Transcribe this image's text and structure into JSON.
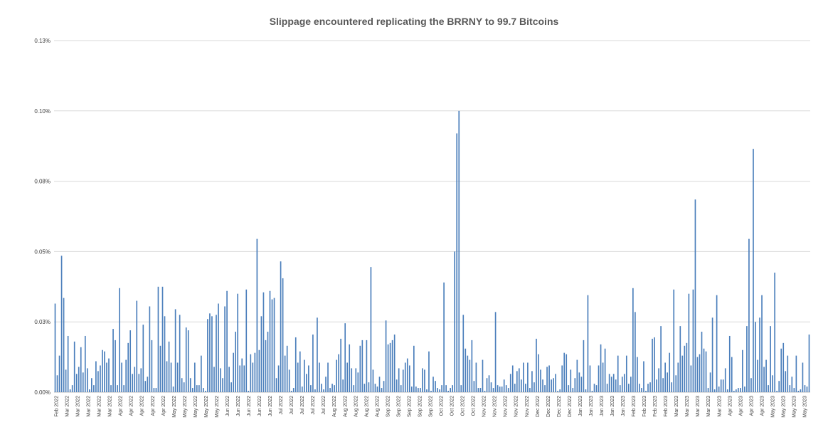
{
  "chart_data": {
    "type": "bar",
    "title": "Slippage encountered replicating the BRRNY to 99.7 Bitcoins",
    "xlabel": "",
    "ylabel": "",
    "ylim": [
      0,
      0.125
    ],
    "yticks": [
      "0.13%",
      "0.10%",
      "0.08%",
      "0.05%",
      "0.03%",
      "0.00%"
    ],
    "grid": true,
    "legend": "none",
    "bar_color": "#4a7ebb",
    "x_tick_labels": [
      "Feb 2022",
      "Mar 2022",
      "Mar 2022",
      "Mar 2022",
      "Mar 2022",
      "Mar 2022",
      "Apr 2022",
      "Apr 2022",
      "Apr 2022",
      "Apr 2022",
      "Apr 2022",
      "May 2022",
      "May 2022",
      "May 2022",
      "May 2022",
      "May 2022",
      "Jun 2022",
      "Jun 2022",
      "Jun 2022",
      "Jun 2022",
      "Jun 2022",
      "Jul 2022",
      "Jul 2022",
      "Jul 2022",
      "Jul 2022",
      "Jul 2022",
      "Aug 2022",
      "Aug 2022",
      "Aug 2022",
      "Aug 2022",
      "Aug 2022",
      "Sep 2022",
      "Sep 2022",
      "Sep 2022",
      "Sep 2022",
      "Sep 2022",
      "Oct 2022",
      "Oct 2022",
      "Oct 2022",
      "Oct 2022",
      "Nov 2022",
      "Nov 2022",
      "Nov 2022",
      "Nov 2022",
      "Nov 2022",
      "Dec 2022",
      "Dec 2022",
      "Dec 2022",
      "Dec 2022",
      "Jan 2023",
      "Jan 2023",
      "Jan 2023",
      "Jan 2023",
      "Jan 2023",
      "Feb 2023",
      "Feb 2023",
      "Feb 2023",
      "Feb 2023",
      "Mar 2023",
      "Mar 2023",
      "Mar 2023",
      "Mar 2023",
      "Mar 2023",
      "Apr 2023",
      "Apr 2023",
      "Apr 2023",
      "Apr 2023",
      "May 2023",
      "May 2023",
      "May 2023",
      "May 2023"
    ],
    "values": [
      0.0315,
      0.006,
      0.013,
      0.0485,
      0.0335,
      0.008,
      0.02,
      0.001,
      0.0025,
      0.018,
      0.0065,
      0.009,
      0.016,
      0.007,
      0.02,
      0.0085,
      0.001,
      0.005,
      0.0025,
      0.011,
      0.0075,
      0.0095,
      0.015,
      0.0145,
      0.0105,
      0.012,
      0.0025,
      0.0225,
      0.0185,
      0.0025,
      0.037,
      0.0105,
      0.0025,
      0.0115,
      0.0175,
      0.022,
      0.0065,
      0.009,
      0.0325,
      0.0065,
      0.0085,
      0.024,
      0.004,
      0.0055,
      0.0305,
      0.0185,
      0.0015,
      0.0015,
      0.0375,
      0.0165,
      0.0375,
      0.027,
      0.011,
      0.018,
      0.0105,
      0.002,
      0.0295,
      0.0105,
      0.0275,
      0.005,
      0.0035,
      0.023,
      0.022,
      0.005,
      0.0015,
      0.0105,
      0.0025,
      0.0025,
      0.013,
      0.0015,
      0.0005,
      0.026,
      0.028,
      0.027,
      0.009,
      0.0275,
      0.0315,
      0.0085,
      0.005,
      0.0305,
      0.036,
      0.009,
      0.0035,
      0.014,
      0.0215,
      0.035,
      0.0095,
      0.012,
      0.0095,
      0.0365,
      0.0005,
      0.0135,
      0.0105,
      0.014,
      0.0545,
      0.015,
      0.027,
      0.0355,
      0.0185,
      0.0215,
      0.036,
      0.033,
      0.0335,
      0.005,
      0.0095,
      0.0465,
      0.0405,
      0.013,
      0.0165,
      0.008,
      0.0005,
      0.0015,
      0.0195,
      0.0105,
      0.0145,
      0.002,
      0.0115,
      0.0065,
      0.0095,
      0.0025,
      0.0205,
      0.001,
      0.0265,
      0.0105,
      0.003,
      0.001,
      0.0055,
      0.0105,
      0.0015,
      0.003,
      0.0025,
      0.0115,
      0.0135,
      0.019,
      0.0045,
      0.0245,
      0.0105,
      0.017,
      0.0085,
      0.0025,
      0.0085,
      0.007,
      0.0165,
      0.0185,
      0.003,
      0.0185,
      0.0035,
      0.0445,
      0.008,
      0.003,
      0.002,
      0.0055,
      0.0015,
      0.004,
      0.0255,
      0.017,
      0.0175,
      0.0185,
      0.0205,
      0.0045,
      0.0085,
      0.0025,
      0.008,
      0.0105,
      0.012,
      0.0095,
      0.002,
      0.0165,
      0.002,
      0.0015,
      0.0015,
      0.0085,
      0.008,
      0.001,
      0.0145,
      0.0005,
      0.0055,
      0.004,
      0.0015,
      0.001,
      0.0025,
      0.039,
      0.0025,
      0.0005,
      0.0015,
      0.0025,
      0.05,
      0.092,
      0.1,
      0.0025,
      0.0275,
      0.0155,
      0.013,
      0.0115,
      0.0185,
      0.004,
      0.0105,
      0.0015,
      0.0015,
      0.0115,
      0.0005,
      0.005,
      0.006,
      0.0035,
      0.0015,
      0.0285,
      0.0025,
      0.002,
      0.002,
      0.0045,
      0.0025,
      0.0015,
      0.0065,
      0.0095,
      0.003,
      0.0075,
      0.0085,
      0.0045,
      0.0105,
      0.003,
      0.0105,
      0.0015,
      0.0075,
      0.0035,
      0.019,
      0.0135,
      0.008,
      0.0045,
      0.0025,
      0.009,
      0.0095,
      0.0045,
      0.005,
      0.0065,
      0.0005,
      0.001,
      0.0095,
      0.014,
      0.0135,
      0.0025,
      0.008,
      0.0015,
      0.005,
      0.0115,
      0.007,
      0.0055,
      0.0185,
      0.001,
      0.0345,
      0.0095,
      0.0005,
      0.003,
      0.0025,
      0.0095,
      0.017,
      0.0105,
      0.0155,
      0.003,
      0.0065,
      0.0055,
      0.0065,
      0.0045,
      0.013,
      0.0025,
      0.0055,
      0.0065,
      0.013,
      0.003,
      0.0055,
      0.037,
      0.0285,
      0.0125,
      0.003,
      0.0015,
      0.011,
      0.0005,
      0.003,
      0.0035,
      0.019,
      0.0195,
      0.0045,
      0.0085,
      0.0235,
      0.005,
      0.0105,
      0.007,
      0.014,
      0.0035,
      0.0365,
      0.006,
      0.0105,
      0.0235,
      0.013,
      0.0165,
      0.0175,
      0.035,
      0.0095,
      0.0365,
      0.0685,
      0.0125,
      0.0135,
      0.0215,
      0.0155,
      0.0145,
      0.0015,
      0.007,
      0.0265,
      0.001,
      0.0345,
      0.002,
      0.0045,
      0.0045,
      0.0085,
      0.001,
      0.02,
      0.0125,
      0.0005,
      0.001,
      0.0015,
      0.0015,
      0.015,
      0.002,
      0.0235,
      0.0545,
      0.005,
      0.0865,
      0.025,
      0.0115,
      0.0265,
      0.0345,
      0.009,
      0.0115,
      0.0025,
      0.0235,
      0.006,
      0.0425,
      0.0005,
      0.004,
      0.0155,
      0.0175,
      0.0075,
      0.013,
      0.0025,
      0.0055,
      0.0015,
      0.013,
      0.0005,
      0.001,
      0.0105,
      0.0025,
      0.002,
      0.0205
    ]
  }
}
